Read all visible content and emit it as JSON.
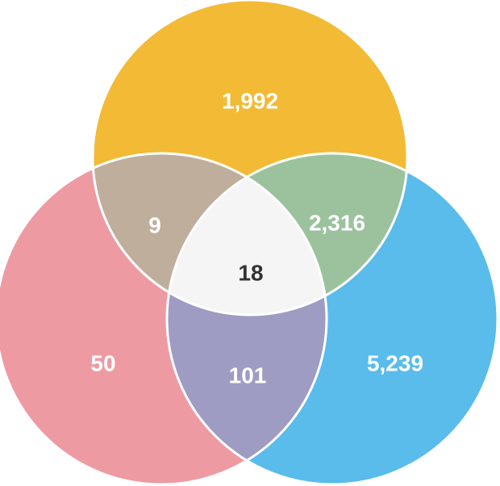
{
  "colors": {
    "top": "#F2BA35",
    "left": "#EE9AA2",
    "right": "#59BCEB",
    "top_left": "#C0AE9C",
    "top_right": "#9BC29D",
    "left_right": "#9E9CC2",
    "center": "#F5F5F5",
    "stroke": "#FFFFFF"
  },
  "regions": {
    "top_only": "1,992",
    "left_only": "50",
    "right_only": "5,239",
    "top_left": "9",
    "top_right": "2,316",
    "left_right": "101",
    "all_three": "18"
  }
}
